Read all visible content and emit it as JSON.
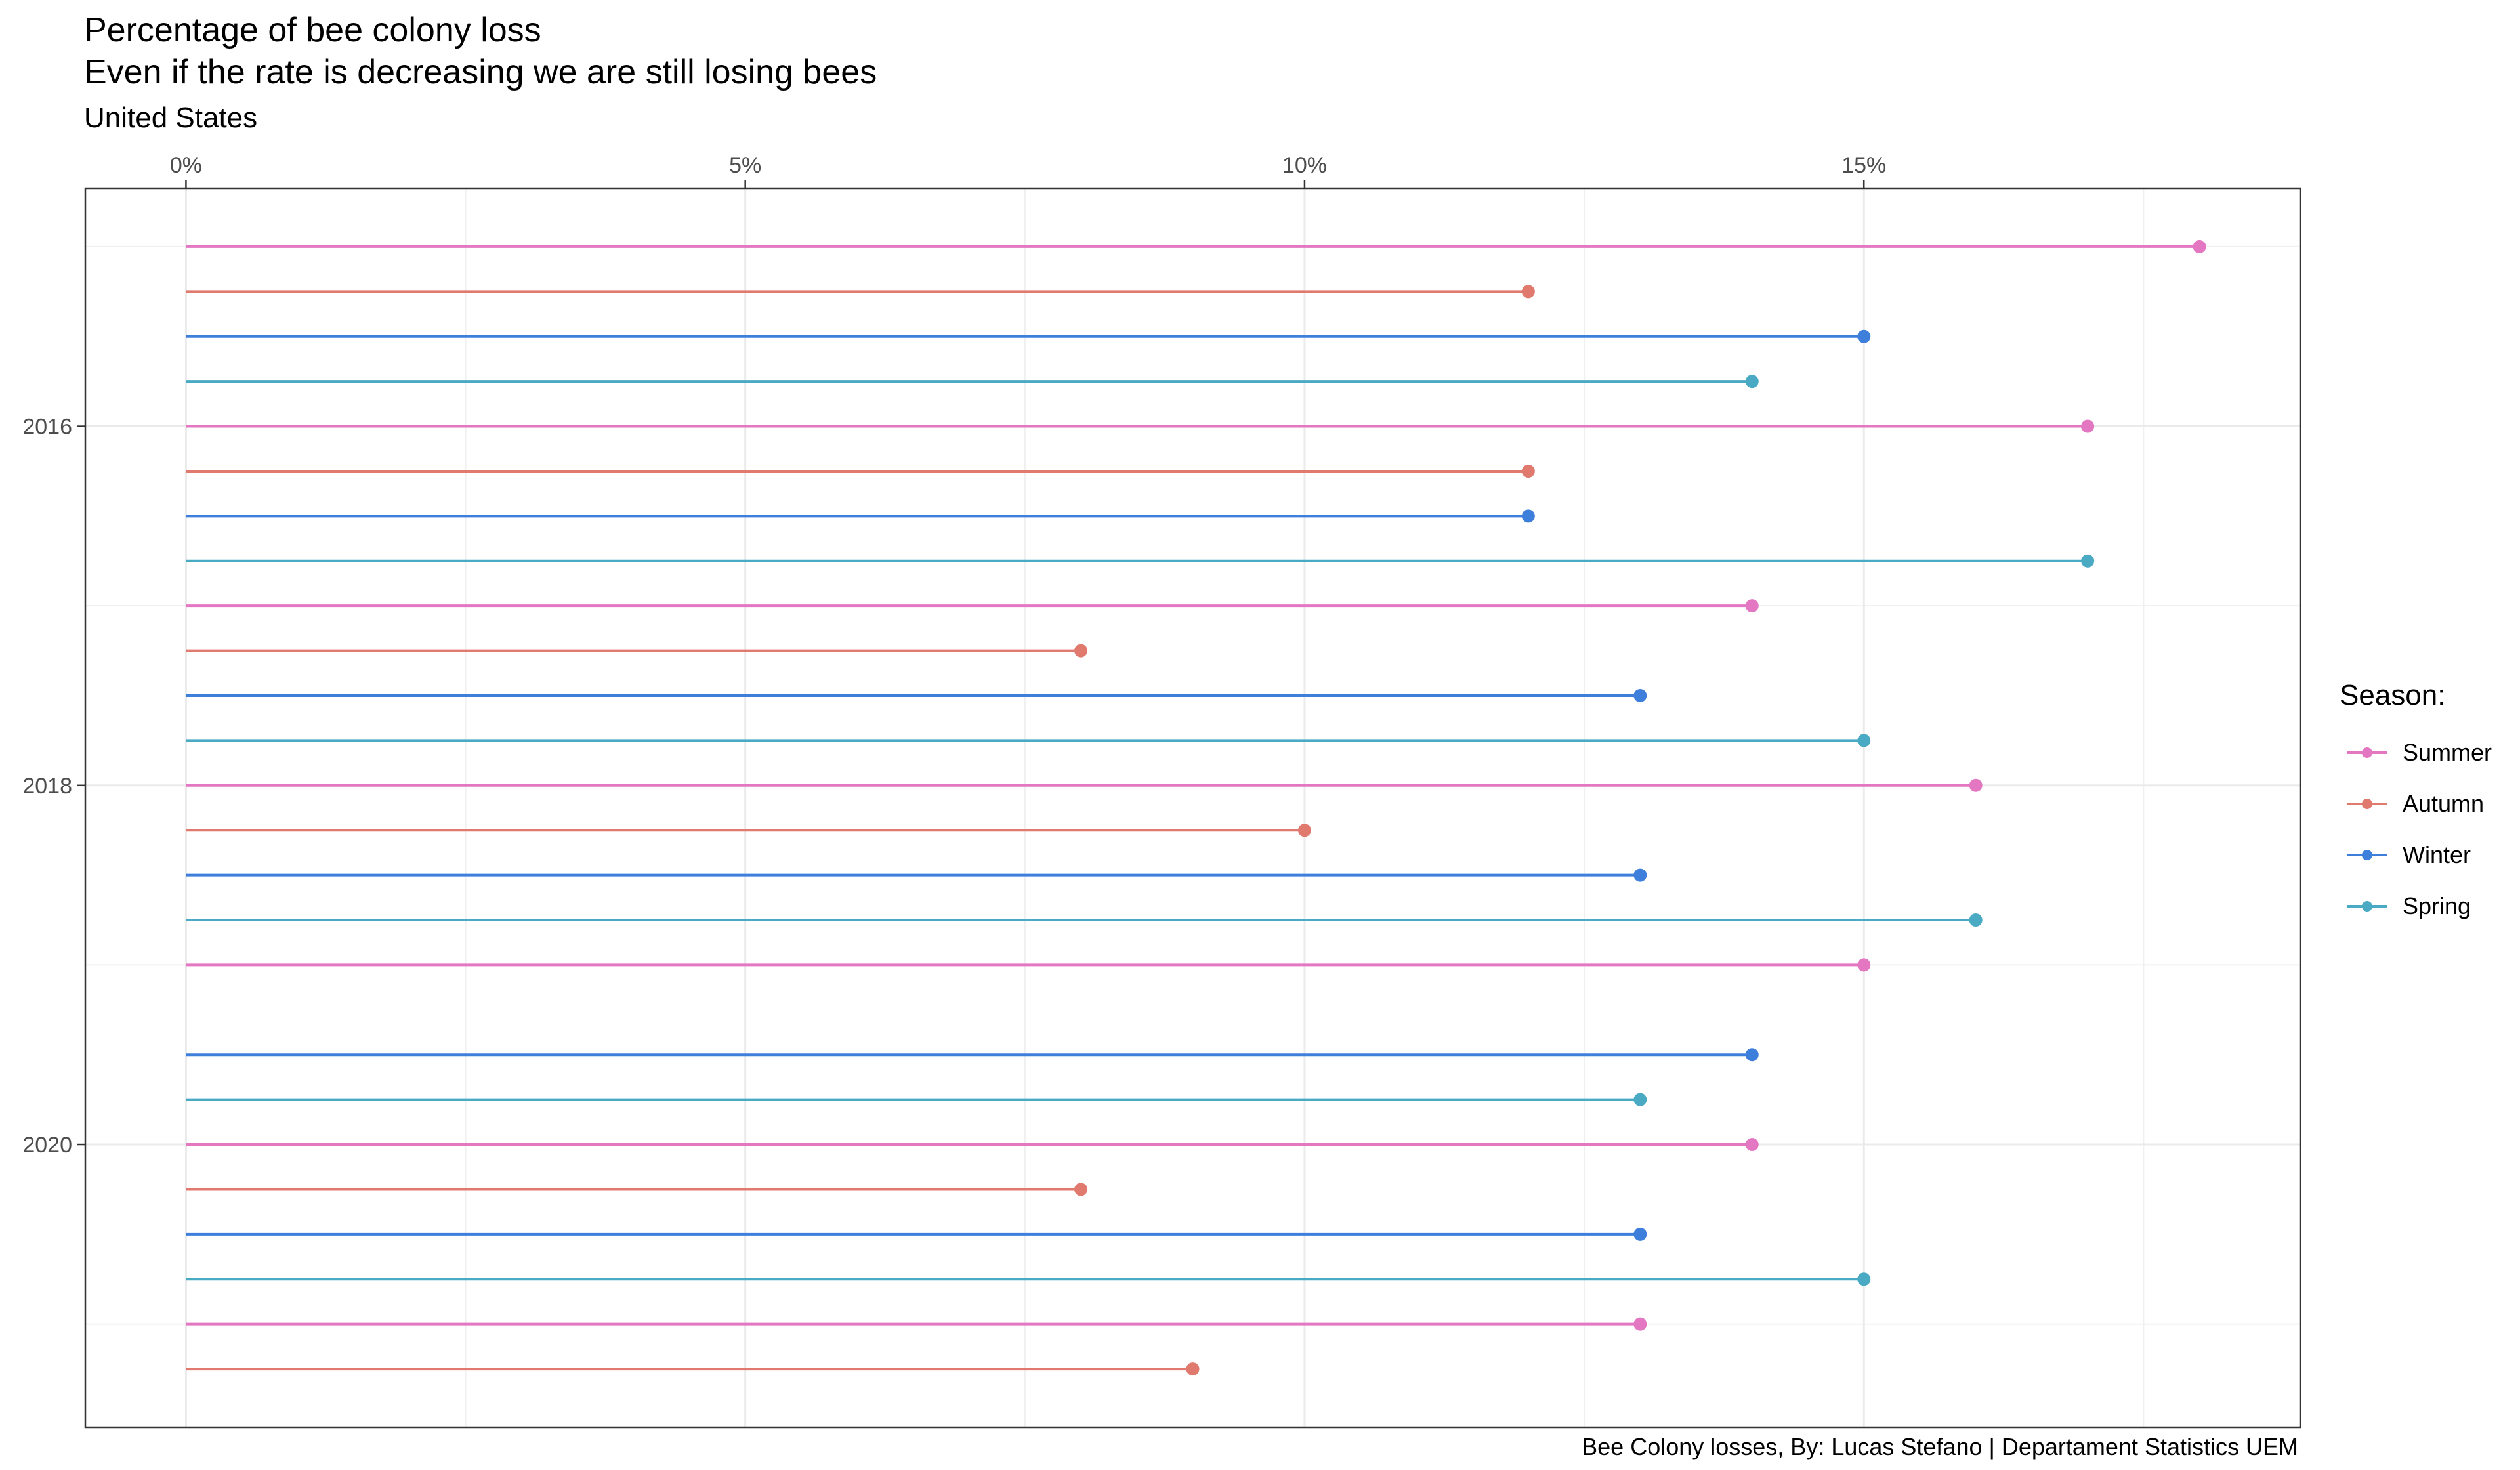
{
  "chart_data": {
    "type": "lollipop",
    "title": "Percentage of bee colony loss",
    "subtitle": "Even if the rate is decreasing we are still losing bees",
    "region_label": "United States",
    "caption": "Bee Colony losses, By: Lucas Stefano | Departament Statistics UEM",
    "x_axis": {
      "position": "top",
      "ticks": [
        "0%",
        "5%",
        "10%",
        "15%"
      ],
      "tick_values": [
        0,
        5,
        10,
        15
      ],
      "range": [
        -0.9,
        18.9
      ]
    },
    "y_axis": {
      "ticks": [
        "2016",
        "2018",
        "2020"
      ],
      "tick_values": [
        2016,
        2018,
        2020
      ],
      "range": [
        2014.675,
        2021.575
      ],
      "reversed": true
    },
    "grid": true,
    "legend": {
      "title": "Season:",
      "placement": "right",
      "entries": [
        {
          "name": "Summer",
          "color": "#e377c2"
        },
        {
          "name": "Autumn",
          "color": "#e07a6e"
        },
        {
          "name": "Winter",
          "color": "#3f7fdc"
        },
        {
          "name": "Spring",
          "color": "#4aaac4"
        }
      ]
    },
    "series": [
      {
        "name": "Summer",
        "color": "#e377c2",
        "points": [
          [
            2015.0,
            18
          ],
          [
            2016.0,
            17
          ],
          [
            2017.0,
            14
          ],
          [
            2018.0,
            16
          ],
          [
            2019.0,
            15
          ],
          [
            2020.0,
            14
          ],
          [
            2021.0,
            13
          ]
        ]
      },
      {
        "name": "Autumn",
        "color": "#e07a6e",
        "points": [
          [
            2015.25,
            12
          ],
          [
            2016.25,
            12
          ],
          [
            2017.25,
            8
          ],
          [
            2018.25,
            10
          ],
          [
            2020.25,
            8
          ],
          [
            2021.25,
            9
          ]
        ]
      },
      {
        "name": "Winter",
        "color": "#3f7fdc",
        "points": [
          [
            2015.5,
            15
          ],
          [
            2016.5,
            12
          ],
          [
            2017.5,
            13
          ],
          [
            2018.5,
            13
          ],
          [
            2019.5,
            14
          ],
          [
            2020.5,
            13
          ]
        ]
      },
      {
        "name": "Spring",
        "color": "#4aaac4",
        "points": [
          [
            2015.75,
            14
          ],
          [
            2016.75,
            17
          ],
          [
            2017.75,
            15
          ],
          [
            2018.75,
            16
          ],
          [
            2019.75,
            13
          ],
          [
            2020.75,
            15
          ]
        ]
      }
    ]
  }
}
